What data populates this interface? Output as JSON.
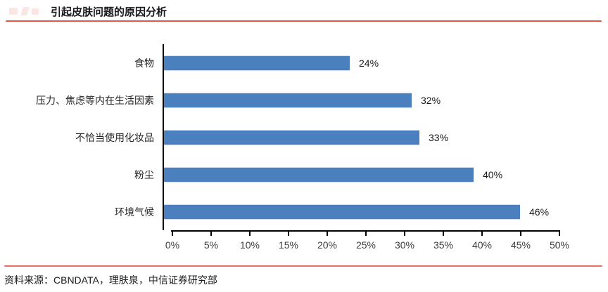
{
  "header": {
    "title": "引起皮肤问题的原因分析"
  },
  "chart_data": {
    "type": "bar",
    "orientation": "horizontal",
    "title": "引起皮肤问题的原因分析",
    "categories": [
      "食物",
      "压力、焦虑等内在生活因素",
      "不恰当使用化妆品",
      "粉尘",
      "环境气候"
    ],
    "values": [
      24,
      32,
      33,
      40,
      46
    ],
    "value_labels": [
      "24%",
      "32%",
      "33%",
      "40%",
      "46%"
    ],
    "xlabel": "",
    "ylabel": "",
    "xlim": [
      0,
      50
    ],
    "x_ticks": [
      "0%",
      "5%",
      "10%",
      "15%",
      "20%",
      "25%",
      "30%",
      "35%",
      "40%",
      "45%",
      "50%"
    ],
    "grid": false,
    "legend": false,
    "bar_color": "#4a80be"
  },
  "footer": {
    "source": "资料来源：CBNDATA，理肤泉，中信证券研究部"
  },
  "colors": {
    "accent_red": "#e4564a",
    "bar_blue": "#4a80be",
    "axis_black": "#000000",
    "text_dark": "#191919",
    "tick_text": "#3d3d3d"
  }
}
